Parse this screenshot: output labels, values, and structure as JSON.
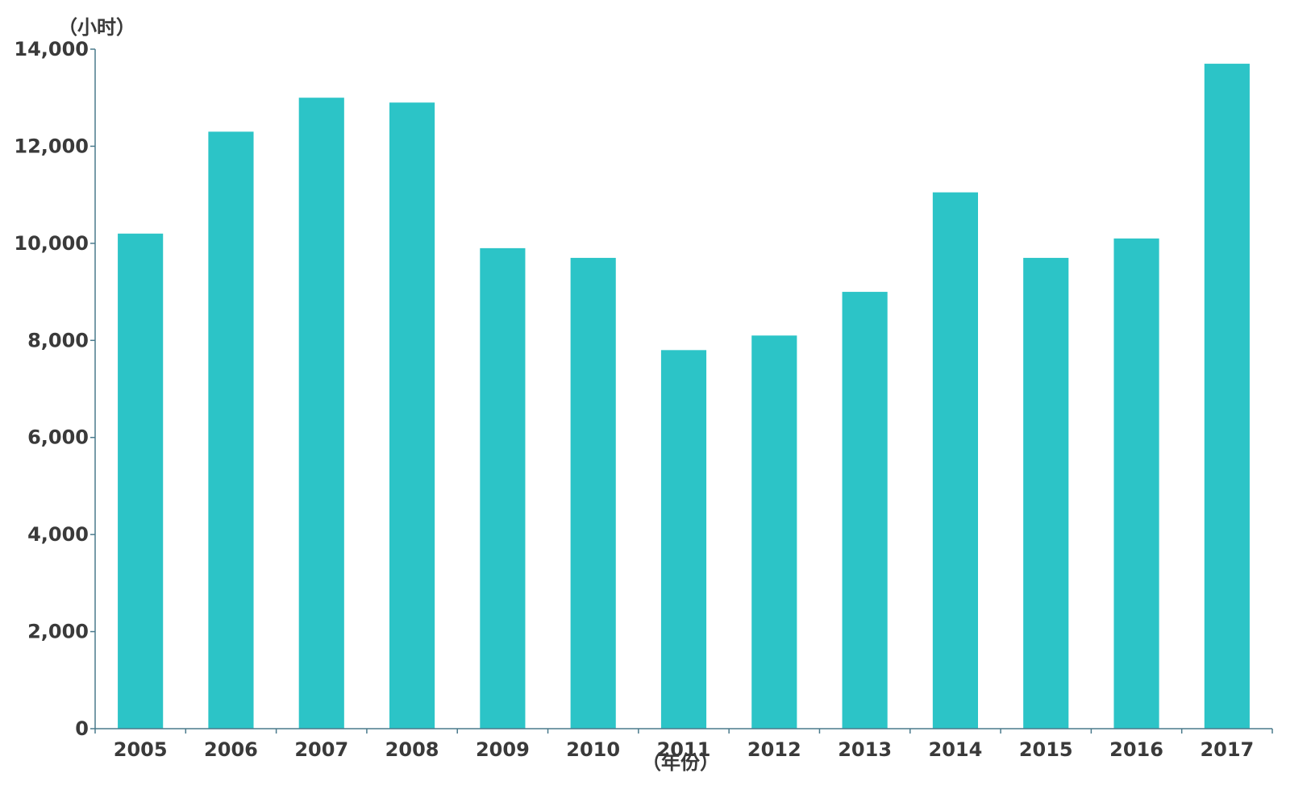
{
  "chart_data": {
    "type": "bar",
    "categories": [
      "2005",
      "2006",
      "2007",
      "2008",
      "2009",
      "2010",
      "2011",
      "2012",
      "2013",
      "2014",
      "2015",
      "2016",
      "2017"
    ],
    "values": [
      10200,
      12300,
      13000,
      12900,
      9900,
      9700,
      7800,
      8100,
      9000,
      11050,
      9700,
      10100,
      13700
    ],
    "title": "",
    "xlabel": "（年份）",
    "ylabel": "（小时）",
    "ylim": [
      0,
      14000
    ],
    "yticks": [
      0,
      2000,
      4000,
      6000,
      8000,
      10000,
      12000,
      14000
    ],
    "ytick_labels": [
      "0",
      "2,000",
      "4,000",
      "6,000",
      "8,000",
      "10,000",
      "12,000",
      "14,000"
    ],
    "grid": false,
    "legend": "none",
    "colors": {
      "bar": "#2cc4c7",
      "axis": "#4a7a8c",
      "text": "#3a3a3a"
    }
  }
}
